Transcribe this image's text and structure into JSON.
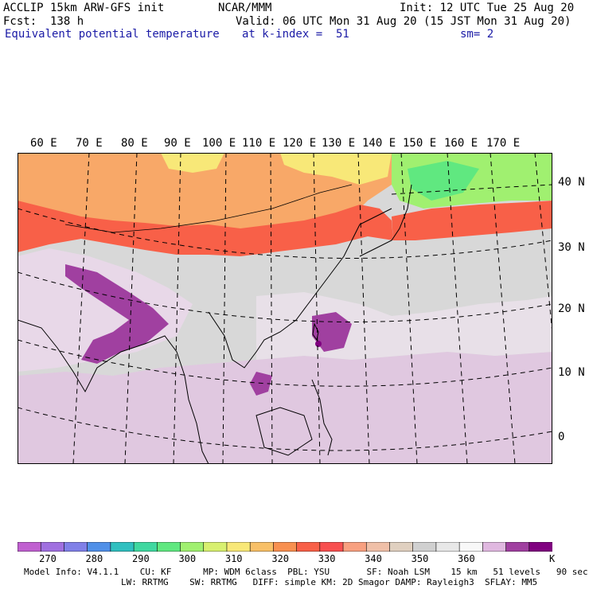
{
  "header": {
    "line1_left": "ACCLIP 15km ARW-GFS init",
    "line1_center": "NCAR/MMM",
    "line1_right": "Init: 12 UTC Tue 25 Aug 20",
    "line2_left": "Fcst:  138 h",
    "line2_right": "Valid: 06 UTC Mon 31 Aug 20 (15 JST Mon 31 Aug 20)",
    "line3_left": "Equivalent potential temperature",
    "line3_center": "at k-index =  51",
    "line3_right": "sm= 2"
  },
  "map": {
    "lon_labels": [
      "60 E",
      "70 E",
      "80 E",
      "90 E",
      "100 E",
      "110 E",
      "120 E",
      "130 E",
      "140 E",
      "150 E",
      "160 E",
      "170 E"
    ],
    "lat_labels": [
      "40 N",
      "30 N",
      "20 N",
      "10 N",
      "0"
    ],
    "colors": {
      "ocean_fill": "#d8d8d8",
      "land_fill": "#c9c9c9",
      "coast_line": "#000000",
      "grid_line": "#000000"
    }
  },
  "colorbar": {
    "colors": [
      "#c060d0",
      "#a070e0",
      "#8080e8",
      "#5090e8",
      "#30c0c0",
      "#40d8a0",
      "#60e880",
      "#a0f070",
      "#d8f070",
      "#f8e878",
      "#f8c068",
      "#f89050",
      "#f86048",
      "#f85050",
      "#f8a080",
      "#f0c0a8",
      "#e0d0c0",
      "#d0d0d0",
      "#e8e8e8",
      "#f8f8f8",
      "#e0b8e0",
      "#a040a0",
      "#800080"
    ],
    "labels": [
      "270",
      "280",
      "290",
      "300",
      "310",
      "320",
      "330",
      "340",
      "350",
      "360"
    ],
    "unit": "K"
  },
  "footer": {
    "line1": "Model Info: V4.1.1    CU: KF      MP: WDM 6class  PBL: YSU       SF: Noah LSM    15 km   51 levels   90 sec",
    "line2": "LW: RRTMG    SW: RRTMG   DIFF: simple KM: 2D Smagor DAMP: Rayleigh3  SFLAY: MM5"
  }
}
